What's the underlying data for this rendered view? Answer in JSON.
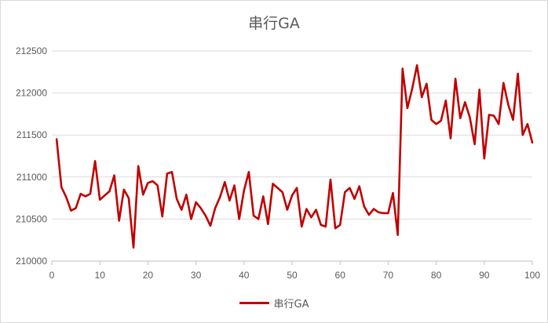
{
  "chart_data": {
    "type": "line",
    "title": "串行GA",
    "xlabel": "",
    "ylabel": "",
    "xlim": [
      0,
      100
    ],
    "ylim": [
      210000,
      212500
    ],
    "x_ticks": [
      0,
      10,
      20,
      30,
      40,
      50,
      60,
      70,
      80,
      90,
      100
    ],
    "y_ticks": [
      210000,
      210500,
      211000,
      211500,
      212000,
      212500
    ],
    "grid": true,
    "legend": "bottom",
    "series": [
      {
        "name": "串行GA",
        "color": "#c00000",
        "x": [
          1,
          2,
          3,
          4,
          5,
          6,
          7,
          8,
          9,
          10,
          11,
          12,
          13,
          14,
          15,
          16,
          17,
          18,
          19,
          20,
          21,
          22,
          23,
          24,
          25,
          26,
          27,
          28,
          29,
          30,
          31,
          32,
          33,
          34,
          35,
          36,
          37,
          38,
          39,
          40,
          41,
          42,
          43,
          44,
          45,
          46,
          47,
          48,
          49,
          50,
          51,
          52,
          53,
          54,
          55,
          56,
          57,
          58,
          59,
          60,
          61,
          62,
          63,
          64,
          65,
          66,
          67,
          68,
          69,
          70,
          71,
          72,
          73,
          74,
          75,
          76,
          77,
          78,
          79,
          80,
          81,
          82,
          83,
          84,
          85,
          86,
          87,
          88,
          89,
          90,
          91,
          92,
          93,
          94,
          95,
          96,
          97,
          98,
          99,
          100
        ],
        "values": [
          211450,
          210880,
          210760,
          210600,
          210630,
          210800,
          210770,
          210800,
          211190,
          210730,
          210780,
          210830,
          211020,
          210480,
          210850,
          210750,
          210160,
          211130,
          210790,
          210930,
          210950,
          210900,
          210530,
          211040,
          211060,
          210740,
          210610,
          210790,
          210500,
          210700,
          210630,
          210540,
          210420,
          210630,
          210760,
          210940,
          210720,
          210900,
          210500,
          210840,
          211060,
          210540,
          210500,
          210770,
          210440,
          210920,
          210870,
          210820,
          210610,
          210780,
          210870,
          210410,
          210620,
          210520,
          210610,
          210430,
          210410,
          210970,
          210390,
          210430,
          210820,
          210870,
          210740,
          210890,
          210650,
          210550,
          210620,
          210580,
          210570,
          210570,
          210810,
          210310,
          212290,
          211820,
          212050,
          212330,
          211950,
          212110,
          211680,
          211630,
          211670,
          211910,
          211460,
          212170,
          211700,
          211890,
          211710,
          211390,
          212040,
          211220,
          211740,
          211730,
          211630,
          212120,
          211860,
          211680,
          212230,
          211500,
          211630,
          211410
        ]
      }
    ]
  }
}
